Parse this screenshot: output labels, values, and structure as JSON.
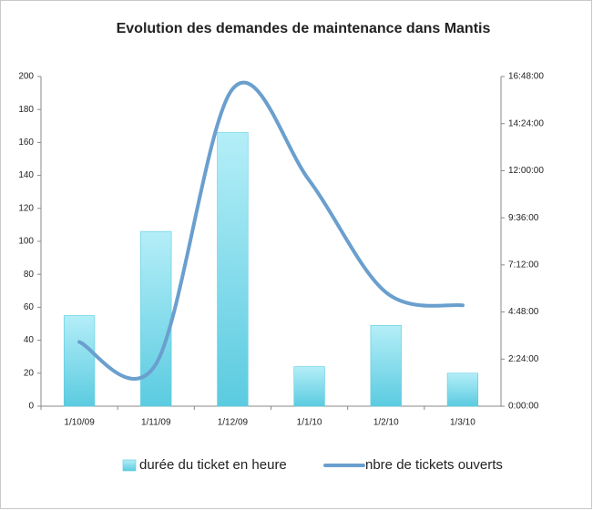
{
  "chart_data": {
    "type": "combo",
    "title": "Evolution des demandes de maintenance dans Mantis",
    "categories": [
      "1/10/09",
      "1/11/09",
      "1/12/09",
      "1/1/10",
      "1/2/10",
      "1/3/10"
    ],
    "series": [
      {
        "name": "durée du ticket en heure",
        "type": "bar",
        "color": "#5bcbe0",
        "values": [
          55,
          106,
          166,
          24,
          49,
          20
        ]
      },
      {
        "name": "nbre de tickets ouverts",
        "type": "line",
        "axis": "y2",
        "color": "#6a9fce",
        "values": [
          3.27,
          2.15,
          16.17,
          11.5,
          5.8,
          5.14
        ]
      }
    ],
    "ylim": [
      0,
      200
    ],
    "yticks": [
      0,
      20,
      40,
      60,
      80,
      100,
      120,
      140,
      160,
      180,
      200
    ],
    "y2lim": [
      0,
      16.8
    ],
    "y2ticks": [
      {
        "value": 0,
        "label": "0:00:00"
      },
      {
        "value": 2.4,
        "label": "2:24:00"
      },
      {
        "value": 4.8,
        "label": "4:48:00"
      },
      {
        "value": 7.2,
        "label": "7:12:00"
      },
      {
        "value": 9.6,
        "label": "9:36:00"
      },
      {
        "value": 12,
        "label": "12:00:00"
      },
      {
        "value": 14.4,
        "label": "14:24:00"
      },
      {
        "value": 16.8,
        "label": "16:48:00"
      }
    ],
    "legend": "bottom"
  }
}
